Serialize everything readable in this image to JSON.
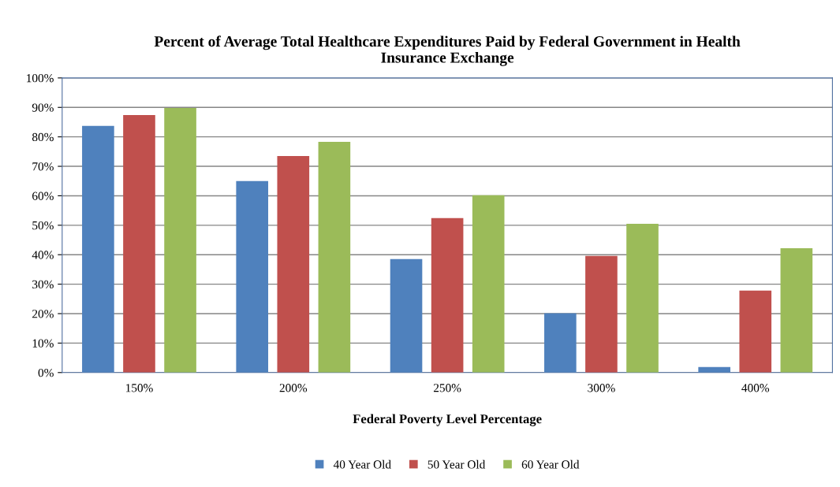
{
  "chart_data": {
    "type": "bar",
    "title": "Percent of Average Total Healthcare Expenditures Paid by Federal Government in Health\nInsurance Exchange",
    "xlabel": "Federal Poverty Level Percentage",
    "categories": [
      "150%",
      "200%",
      "250%",
      "300%",
      "400%"
    ],
    "series": [
      {
        "name": "40 Year Old",
        "color": "#4f81bd",
        "values": [
          83.7,
          65.0,
          38.5,
          20.1,
          1.9
        ]
      },
      {
        "name": "50 Year Old",
        "color": "#c0504d",
        "values": [
          87.4,
          73.5,
          52.4,
          39.6,
          27.8
        ]
      },
      {
        "name": "60 Year Old",
        "color": "#9bbb59",
        "values": [
          89.8,
          78.3,
          60.2,
          50.5,
          42.2
        ]
      }
    ],
    "ylim": [
      0,
      100
    ],
    "yticks": [
      {
        "value": 0,
        "label": "0%"
      },
      {
        "value": 10,
        "label": "10%"
      },
      {
        "value": 20,
        "label": "20%"
      },
      {
        "value": 30,
        "label": "30%"
      },
      {
        "value": 40,
        "label": "40%"
      },
      {
        "value": 50,
        "label": "50%"
      },
      {
        "value": 60,
        "label": "60%"
      },
      {
        "value": 70,
        "label": "70%"
      },
      {
        "value": 80,
        "label": "80%"
      },
      {
        "value": 90,
        "label": "90%"
      },
      {
        "value": 100,
        "label": "100%"
      }
    ],
    "grid": "y",
    "legend": "bottom"
  }
}
